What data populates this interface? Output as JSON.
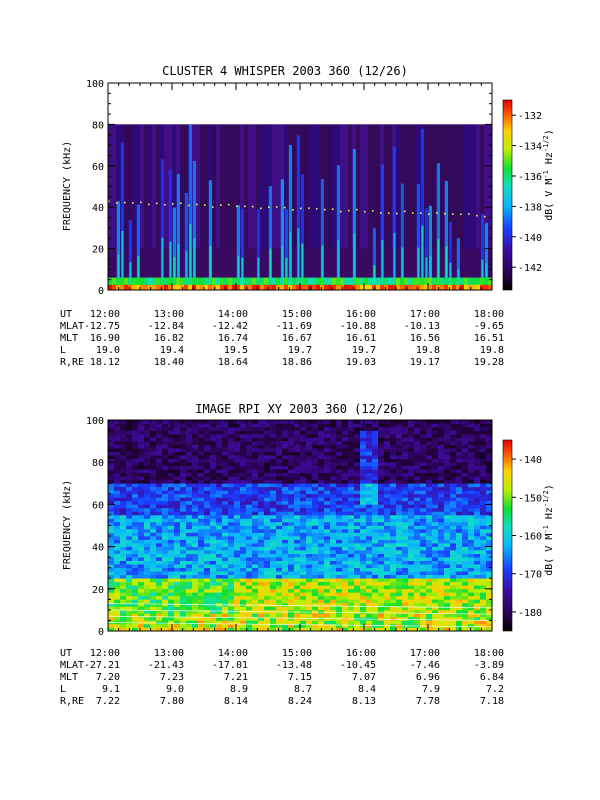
{
  "chart_data": [
    {
      "type": "heatmap",
      "title": "CLUSTER 4 WHISPER 2003 360 (12/26)",
      "ylabel": "FREQUENCY (kHz)",
      "ylim": [
        0,
        100
      ],
      "yticks": [
        "0",
        "20",
        "40",
        "60",
        "80",
        "100"
      ],
      "xlim": [
        "12:00",
        "18:00"
      ],
      "data_top_khz": 80,
      "colorbar": {
        "label": "dB( V M⁻¹ Hz⁻¹ᐟ²)",
        "label_main": "dB( V M",
        "label_sup1": "-1",
        "label_mid": " Hz",
        "label_sup2": "-1/2",
        "label_end": ")",
        "range": [
          -143.5,
          -131
        ],
        "ticks": [
          "-132",
          "-134",
          "-136",
          "-138",
          "-140",
          "-142"
        ],
        "tick_values": [
          -132,
          -134,
          -136,
          -138,
          -140,
          -142
        ]
      },
      "ephemeris": {
        "row_labels": [
          "UT",
          "MLAT",
          "MLT",
          "L",
          "R,RE"
        ],
        "columns": [
          [
            "12:00",
            "-12.75",
            "16.90",
            "19.0",
            "18.12"
          ],
          [
            "13:00",
            "-12.84",
            "16.82",
            "19.4",
            "18.40"
          ],
          [
            "14:00",
            "-12.42",
            "16.74",
            "19.5",
            "18.64"
          ],
          [
            "15:00",
            "-11.69",
            "16.67",
            "19.7",
            "18.86"
          ],
          [
            "16:00",
            "-10.88",
            "16.61",
            "19.7",
            "19.03"
          ],
          [
            "17:00",
            "-10.13",
            "16.56",
            "19.8",
            "19.17"
          ],
          [
            "18:00",
            "-9.65",
            "16.51",
            "19.8",
            "19.28"
          ]
        ]
      }
    },
    {
      "type": "heatmap",
      "title": "IMAGE RPI XY 2003 360 (12/26)",
      "ylabel": "FREQUENCY (kHz)",
      "ylim": [
        0,
        100
      ],
      "yticks": [
        "0",
        "20",
        "40",
        "60",
        "80",
        "100"
      ],
      "xlim": [
        "12:00",
        "18:00"
      ],
      "colorbar": {
        "label_main": "dB( V M",
        "label_sup1": "-1",
        "label_mid": " Hz",
        "label_sup2": "-1/2",
        "label_end": ")",
        "range": [
          -185,
          -135
        ],
        "ticks": [
          "-140",
          "-150",
          "-160",
          "-170",
          "-180"
        ],
        "tick_values": [
          -140,
          -150,
          -160,
          -170,
          -180
        ]
      },
      "ephemeris": {
        "row_labels": [
          "UT",
          "MLAT",
          "MLT",
          "L",
          "R,RE"
        ],
        "columns": [
          [
            "12:00",
            "-27.21",
            "7.20",
            "9.1",
            "7.22"
          ],
          [
            "13:00",
            "-21.43",
            "7.23",
            "9.0",
            "7.80"
          ],
          [
            "14:00",
            "-17.01",
            "7.21",
            "8.9",
            "8.14"
          ],
          [
            "15:00",
            "-13.48",
            "7.15",
            "8.7",
            "8.24"
          ],
          [
            "16:00",
            "-10.45",
            "7.07",
            "8.4",
            "8.13"
          ],
          [
            "17:00",
            "-7.46",
            "6.96",
            "7.9",
            "7.78"
          ],
          [
            "18:00",
            "-3.89",
            "6.84",
            "7.2",
            "7.18"
          ]
        ]
      }
    }
  ]
}
